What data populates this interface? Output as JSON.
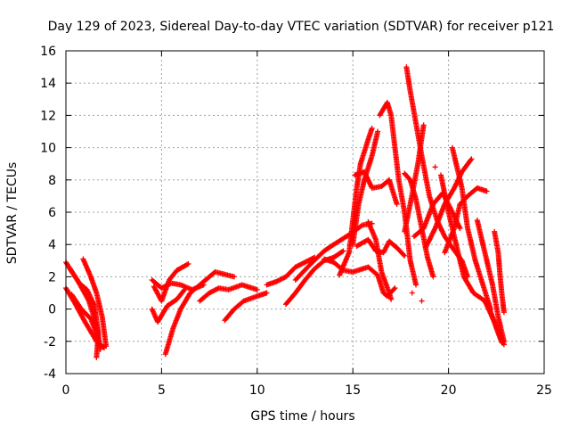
{
  "chart_data": {
    "type": "scatter",
    "title": "Day 129 of 2023, Sidereal Day-to-day VTEC variation (SDTVAR) for receiver p121",
    "xlabel": "GPS time / hours",
    "ylabel": "SDTVAR / TECUs",
    "xlim": [
      0,
      25
    ],
    "ylim": [
      -4,
      16
    ],
    "x_ticks": [
      "0",
      "5",
      "10",
      "15",
      "20",
      "25"
    ],
    "y_ticks": [
      "-4",
      "-2",
      "0",
      "2",
      "4",
      "6",
      "8",
      "10",
      "12",
      "14",
      "16"
    ],
    "grid": true,
    "marker": "plus",
    "series_color": "#ff0000",
    "tracks": [
      [
        [
          0.0,
          2.9
        ],
        [
          0.6,
          1.8
        ],
        [
          1.2,
          0.5
        ],
        [
          1.6,
          -1.0
        ],
        [
          1.8,
          -2.5
        ]
      ],
      [
        [
          0.0,
          1.3
        ],
        [
          0.5,
          0.3
        ],
        [
          1.0,
          -0.8
        ],
        [
          1.6,
          -2.0
        ],
        [
          2.0,
          -2.4
        ]
      ],
      [
        [
          0.2,
          2.5
        ],
        [
          0.7,
          1.6
        ],
        [
          1.1,
          1.2
        ],
        [
          1.5,
          0.2
        ],
        [
          1.7,
          -1.5
        ],
        [
          1.6,
          -3.0
        ]
      ],
      [
        [
          0.9,
          3.1
        ],
        [
          1.3,
          2.0
        ],
        [
          1.6,
          1.0
        ],
        [
          1.9,
          -0.5
        ],
        [
          2.1,
          -2.3
        ]
      ],
      [
        [
          0.3,
          0.9
        ],
        [
          0.8,
          0.0
        ],
        [
          1.3,
          -0.6
        ],
        [
          1.7,
          -1.8
        ]
      ],
      [
        [
          4.5,
          0.0
        ],
        [
          4.8,
          -0.8
        ],
        [
          5.3,
          0.2
        ],
        [
          5.8,
          0.6
        ],
        [
          6.2,
          1.2
        ]
      ],
      [
        [
          4.5,
          1.8
        ],
        [
          5.0,
          1.3
        ],
        [
          5.5,
          1.6
        ],
        [
          6.0,
          1.5
        ],
        [
          6.6,
          1.2
        ],
        [
          7.2,
          1.5
        ]
      ],
      [
        [
          5.2,
          -2.8
        ],
        [
          5.6,
          -1.2
        ],
        [
          6.0,
          0.0
        ],
        [
          6.5,
          1.0
        ],
        [
          7.0,
          1.5
        ],
        [
          7.8,
          2.3
        ],
        [
          8.8,
          2.0
        ]
      ],
      [
        [
          4.6,
          1.4
        ],
        [
          5.0,
          0.5
        ],
        [
          5.4,
          1.8
        ],
        [
          5.8,
          2.4
        ],
        [
          6.4,
          2.8
        ]
      ],
      [
        [
          7.0,
          0.5
        ],
        [
          7.5,
          1.0
        ],
        [
          8.0,
          1.3
        ],
        [
          8.5,
          1.2
        ],
        [
          9.2,
          1.5
        ],
        [
          10.0,
          1.2
        ]
      ],
      [
        [
          8.3,
          -0.7
        ],
        [
          8.8,
          0.0
        ],
        [
          9.3,
          0.5
        ],
        [
          10.0,
          0.8
        ],
        [
          10.5,
          1.0
        ]
      ],
      [
        [
          10.5,
          1.5
        ],
        [
          11.0,
          1.7
        ],
        [
          11.5,
          2.0
        ],
        [
          12.0,
          2.6
        ],
        [
          12.5,
          2.9
        ],
        [
          13.0,
          3.2
        ]
      ],
      [
        [
          11.5,
          0.3
        ],
        [
          12.0,
          1.0
        ],
        [
          12.5,
          1.8
        ],
        [
          13.0,
          2.5
        ],
        [
          13.5,
          3.0
        ],
        [
          14.0,
          3.2
        ],
        [
          14.5,
          3.6
        ]
      ],
      [
        [
          12.0,
          1.8
        ],
        [
          12.8,
          2.8
        ],
        [
          13.5,
          3.6
        ],
        [
          14.0,
          4.0
        ],
        [
          14.8,
          4.6
        ],
        [
          15.5,
          5.2
        ],
        [
          16.0,
          5.3
        ]
      ],
      [
        [
          13.5,
          3.1
        ],
        [
          14.0,
          2.9
        ],
        [
          14.5,
          2.4
        ],
        [
          15.0,
          2.3
        ],
        [
          15.8,
          2.6
        ],
        [
          16.3,
          2.1
        ],
        [
          16.6,
          1.0
        ],
        [
          16.8,
          0.8
        ],
        [
          17.2,
          1.3
        ]
      ],
      [
        [
          14.3,
          2.1
        ],
        [
          14.8,
          3.5
        ],
        [
          15.0,
          5.5
        ],
        [
          15.2,
          7.5
        ],
        [
          15.4,
          9.0
        ],
        [
          15.8,
          10.5
        ],
        [
          16.0,
          11.2
        ]
      ],
      [
        [
          15.0,
          4.0
        ],
        [
          15.3,
          6.5
        ],
        [
          15.6,
          8.0
        ],
        [
          16.0,
          9.5
        ],
        [
          16.3,
          11.0
        ]
      ],
      [
        [
          15.1,
          8.3
        ],
        [
          15.6,
          8.5
        ],
        [
          16.0,
          7.5
        ],
        [
          16.5,
          7.6
        ],
        [
          16.9,
          8.0
        ],
        [
          17.3,
          6.5
        ]
      ],
      [
        [
          15.2,
          3.9
        ],
        [
          15.8,
          4.3
        ],
        [
          16.2,
          3.6
        ],
        [
          16.6,
          3.5
        ],
        [
          16.9,
          4.2
        ],
        [
          17.3,
          3.8
        ],
        [
          17.7,
          3.3
        ]
      ],
      [
        [
          15.8,
          5.4
        ],
        [
          16.2,
          4.3
        ],
        [
          16.5,
          2.3
        ],
        [
          16.9,
          1.0
        ],
        [
          17.0,
          0.6
        ]
      ],
      [
        [
          16.4,
          12.0
        ],
        [
          16.8,
          12.8
        ],
        [
          17.0,
          12.0
        ],
        [
          17.2,
          10.0
        ],
        [
          17.4,
          8.0
        ],
        [
          17.7,
          6.0
        ],
        [
          18.0,
          3.0
        ],
        [
          18.3,
          1.5
        ]
      ],
      [
        [
          17.7,
          4.8
        ],
        [
          18.0,
          6.5
        ],
        [
          18.4,
          9.0
        ],
        [
          18.7,
          11.4
        ]
      ],
      [
        [
          17.7,
          8.4
        ],
        [
          18.0,
          8.0
        ],
        [
          18.3,
          6.8
        ],
        [
          18.6,
          5.0
        ],
        [
          18.9,
          3.2
        ],
        [
          19.2,
          2.0
        ]
      ],
      [
        [
          17.8,
          15.0
        ],
        [
          18.0,
          13.5
        ],
        [
          18.3,
          11.5
        ],
        [
          18.6,
          9.5
        ],
        [
          19.0,
          7.0
        ],
        [
          19.4,
          5.5
        ],
        [
          19.8,
          4.5
        ],
        [
          20.2,
          3.8
        ],
        [
          20.7,
          3.0
        ],
        [
          21.0,
          2.0
        ]
      ],
      [
        [
          18.2,
          4.5
        ],
        [
          18.7,
          5.0
        ],
        [
          19.2,
          6.5
        ],
        [
          19.7,
          7.2
        ],
        [
          20.2,
          6.0
        ],
        [
          20.6,
          5.0
        ]
      ],
      [
        [
          18.8,
          3.8
        ],
        [
          19.3,
          5.0
        ],
        [
          19.8,
          6.5
        ],
        [
          20.3,
          7.5
        ],
        [
          20.7,
          8.5
        ],
        [
          21.2,
          9.3
        ]
      ],
      [
        [
          19.8,
          3.5
        ],
        [
          20.3,
          5.0
        ],
        [
          20.6,
          6.5
        ],
        [
          21.0,
          7.0
        ],
        [
          21.5,
          7.5
        ],
        [
          22.0,
          7.3
        ]
      ],
      [
        [
          19.6,
          8.3
        ],
        [
          20.0,
          6.0
        ],
        [
          20.4,
          4.0
        ],
        [
          20.8,
          2.0
        ],
        [
          21.3,
          1.0
        ],
        [
          21.9,
          0.5
        ],
        [
          22.4,
          -0.8
        ],
        [
          22.9,
          -2.2
        ]
      ],
      [
        [
          20.2,
          10.0
        ],
        [
          20.7,
          7.5
        ],
        [
          21.0,
          5.0
        ],
        [
          21.4,
          3.0
        ],
        [
          21.8,
          1.5
        ],
        [
          22.2,
          0.0
        ]
      ],
      [
        [
          21.5,
          5.5
        ],
        [
          21.9,
          3.5
        ],
        [
          22.3,
          1.5
        ],
        [
          22.6,
          -0.5
        ],
        [
          22.9,
          -2.0
        ]
      ],
      [
        [
          22.4,
          4.8
        ],
        [
          22.6,
          3.5
        ],
        [
          22.7,
          2.0
        ],
        [
          22.8,
          0.8
        ],
        [
          22.9,
          -0.2
        ]
      ],
      [
        [
          22.0,
          0.5
        ],
        [
          22.3,
          -0.5
        ],
        [
          22.6,
          -1.5
        ],
        [
          22.8,
          -2.1
        ]
      ]
    ],
    "isolated_points": [
      [
        19.3,
        8.8
      ],
      [
        18.6,
        0.5
      ],
      [
        18.1,
        1.0
      ]
    ]
  }
}
